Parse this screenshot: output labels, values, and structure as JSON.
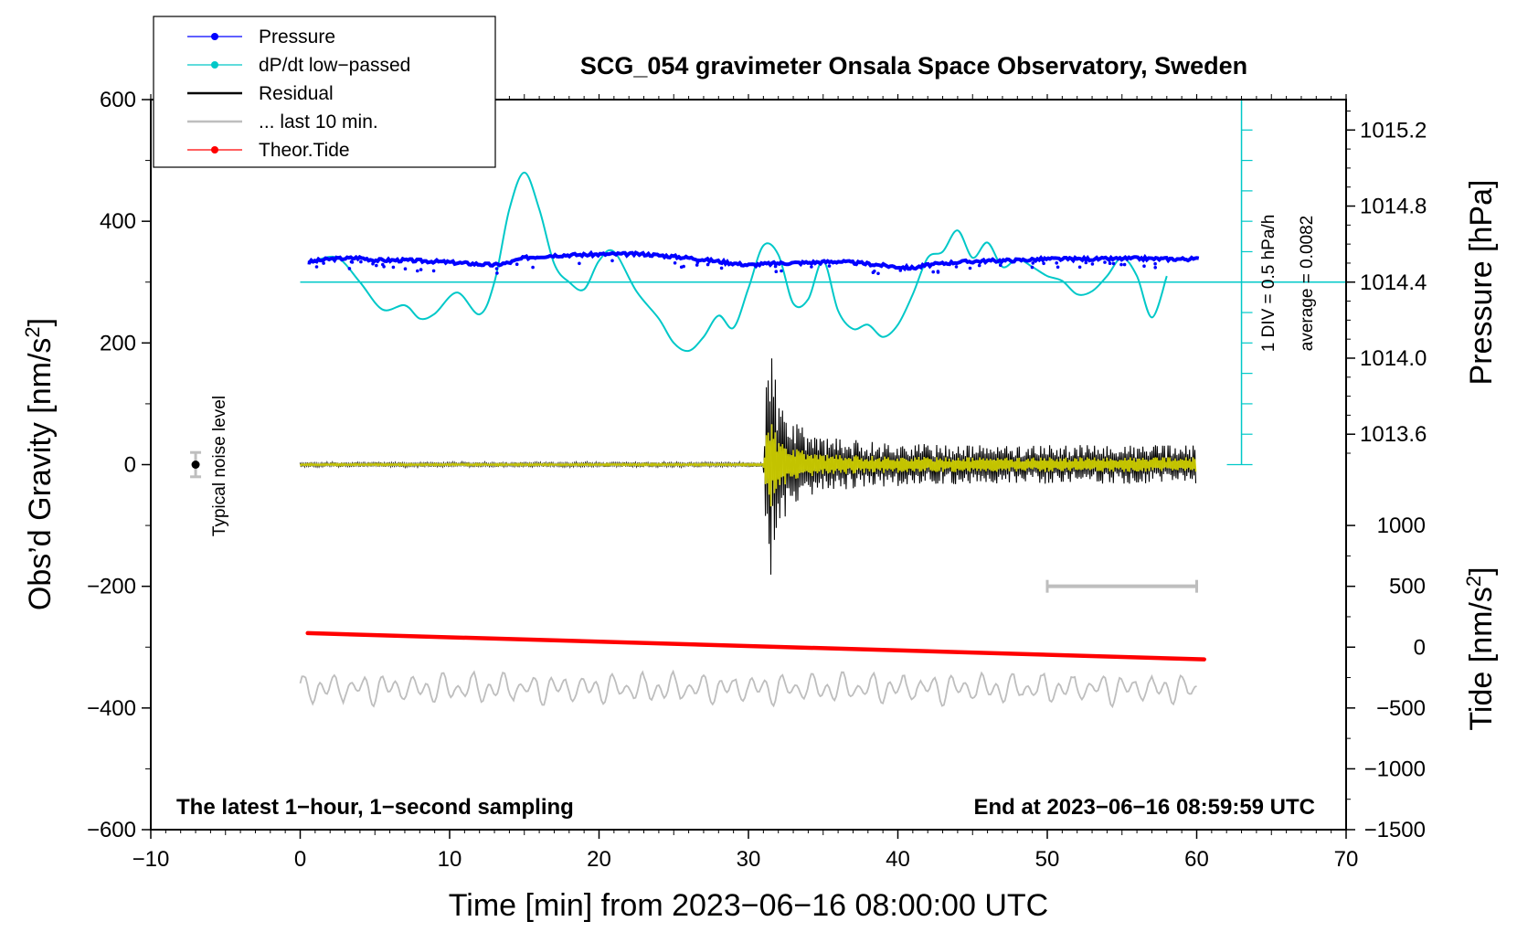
{
  "chart_data": {
    "type": "line",
    "title": "SCG_054 gravimeter Onsala Space Observatory, Sweden",
    "xlabel": "Time [min] from 2023−06−16 08:00:00 UTC",
    "ylabel_left": "Obs’d Gravity [nm/s",
    "ylabel_left_sup": "2",
    "ylabel_left_end": "]",
    "ylabel_right_pressure": "Pressure [hPa]",
    "ylabel_right_tide": "Tide [nm/s",
    "ylabel_right_tide_sup": "2",
    "ylabel_right_tide_end": "]",
    "xlim": [
      -10,
      70
    ],
    "ylim": [
      -600,
      600
    ],
    "x_ticks": [
      {
        "value": -10,
        "label": "−10"
      },
      {
        "value": 0,
        "label": "0"
      },
      {
        "value": 10,
        "label": "10"
      },
      {
        "value": 20,
        "label": "20"
      },
      {
        "value": 30,
        "label": "30"
      },
      {
        "value": 40,
        "label": "40"
      },
      {
        "value": 50,
        "label": "50"
      },
      {
        "value": 60,
        "label": "60"
      },
      {
        "value": 70,
        "label": "70"
      }
    ],
    "y_ticks": [
      {
        "value": 600,
        "label": "600"
      },
      {
        "value": 400,
        "label": "400"
      },
      {
        "value": 200,
        "label": "200"
      },
      {
        "value": 0,
        "label": "0"
      },
      {
        "value": -200,
        "label": "−200"
      },
      {
        "value": -400,
        "label": "−400"
      },
      {
        "value": -600,
        "label": "−600"
      }
    ],
    "pressure_axis": {
      "unit": "hPa",
      "g_per_hpa": 312.5,
      "ref_hpa": 1014.4,
      "ref_g": 300,
      "ticks": [
        {
          "value": 1015.2,
          "label": "1015.2"
        },
        {
          "value": 1014.8,
          "label": "1014.8"
        },
        {
          "value": 1014.4,
          "label": "1014.4"
        },
        {
          "value": 1014.0,
          "label": "1014.0"
        },
        {
          "value": 1013.6,
          "label": "1013.6"
        }
      ]
    },
    "tide_axis": {
      "g_per_tide": 0.2,
      "ref_g": -300,
      "ticks": [
        {
          "value": 1000,
          "label": "1000"
        },
        {
          "value": 500,
          "label": "500"
        },
        {
          "value": 0,
          "label": "0"
        },
        {
          "value": -500,
          "label": "−500"
        },
        {
          "value": -1000,
          "label": "−1000"
        },
        {
          "value": -1500,
          "label": "−1500"
        }
      ]
    },
    "dpdt_scale": {
      "label_div": "1 DIV = 0.5 hPa/h",
      "label_avg": "average = 0.0082",
      "x_position": 63,
      "y_from": 0,
      "y_to": 600,
      "baseline_g": 300,
      "divisions": 12
    },
    "noise_marker": {
      "label": "Typical noise level",
      "x": -7,
      "y": 0,
      "error": 20
    },
    "last10_bar": {
      "x_start": 50,
      "x_end": 60,
      "y": -200
    },
    "footer_left": "The latest 1−hour, 1−second sampling",
    "footer_right": "End at 2023−06−16 08:59:59 UTC",
    "legend": [
      {
        "label": "Pressure",
        "color": "#0000ff",
        "marker": true
      },
      {
        "label": "dP/dt low−passed",
        "color": "#00c8c8",
        "marker": true
      },
      {
        "label": "Residual",
        "color": "#000000",
        "marker": false
      },
      {
        "label": "... last 10 min.",
        "color": "#bebebe",
        "marker": false
      },
      {
        "label": "Theor.Tide",
        "color": "#ff0000",
        "marker": true
      }
    ],
    "series": [
      {
        "name": "Pressure",
        "color": "#0000ff",
        "units": "nm/s2",
        "x": [
          0.5,
          2,
          4,
          5,
          7,
          9,
          11,
          13,
          14,
          15,
          17,
          19,
          21,
          23,
          24,
          26,
          28,
          30,
          32,
          34,
          36,
          38,
          40,
          41,
          42,
          44,
          46,
          48,
          50,
          52,
          54,
          56,
          58,
          60
        ],
        "y": [
          333,
          338,
          340,
          336,
          336,
          334,
          331,
          328,
          332,
          340,
          344,
          345,
          346,
          346,
          344,
          340,
          334,
          328,
          331,
          332,
          334,
          330,
          325,
          323,
          328,
          333,
          335,
          336,
          338,
          338,
          338,
          339,
          338,
          338
        ]
      },
      {
        "name": "dP/dt low−passed",
        "color": "#00c8c8",
        "units": "nm/s2",
        "x": [
          1,
          2.5,
          4,
          5.5,
          7,
          8,
          9,
          10.5,
          12,
          13,
          14,
          15,
          16,
          17,
          18,
          19,
          20,
          21,
          22.5,
          24,
          25,
          26,
          27,
          28,
          29,
          30,
          31,
          32,
          33,
          34,
          35,
          36,
          37,
          38,
          39,
          40,
          41,
          42,
          43,
          44,
          45,
          46,
          47,
          48,
          49,
          50,
          51,
          52,
          53,
          54,
          55,
          56,
          57,
          58
        ],
        "y": [
          335,
          340,
          300,
          255,
          262,
          240,
          248,
          283,
          247,
          300,
          420,
          480,
          420,
          330,
          300,
          288,
          335,
          350,
          285,
          240,
          200,
          187,
          210,
          245,
          225,
          290,
          360,
          345,
          265,
          272,
          335,
          253,
          223,
          230,
          210,
          230,
          280,
          340,
          350,
          385,
          340,
          365,
          325,
          338,
          325,
          310,
          302,
          280,
          285,
          310,
          340,
          310,
          242,
          310
        ]
      },
      {
        "name": "Residual",
        "color": "#000000",
        "units": "nm/s2",
        "envelope": {
          "x": [
            0,
            31,
            31.3,
            31.6,
            32,
            33,
            35,
            40,
            45,
            50,
            60
          ],
          "amp": [
            4,
            4,
            225,
            180,
            110,
            70,
            45,
            35,
            32,
            32,
            32
          ]
        }
      },
      {
        "name": "... last 10 min.",
        "color": "#bebebe",
        "units": "nm/s2",
        "baseline": -368,
        "envelope": {
          "x": [
            0,
            60
          ],
          "amp": [
            30,
            30
          ]
        }
      },
      {
        "name": "Theor.Tide",
        "color": "#ff0000",
        "units": "nm/s2",
        "x": [
          0.5,
          60.5
        ],
        "y": [
          -277,
          -320
        ]
      }
    ]
  }
}
